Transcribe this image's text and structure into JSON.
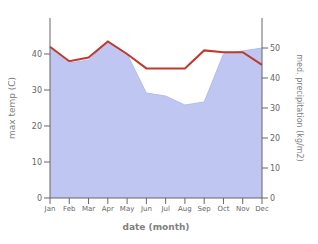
{
  "chart_data": {
    "type": "line",
    "xlabel": "date (month)",
    "ylabel": "max temp (C)",
    "y2label": "med. precipitation (kg/m2)",
    "categories": [
      "Jan",
      "Feb",
      "Mar",
      "Apr",
      "May",
      "Jun",
      "Jul",
      "Aug",
      "Sep",
      "Oct",
      "Nov",
      "Dec"
    ],
    "series": [
      {
        "type": "area",
        "axis": "y2",
        "color": "#b3bcee",
        "values": [
          50,
          45,
          46,
          52,
          48,
          35,
          34,
          31,
          32,
          48,
          49,
          50
        ]
      },
      {
        "type": "line",
        "color": "#c0392b",
        "values": [
          42,
          38,
          39,
          43.5,
          40,
          36,
          36,
          36,
          41,
          40.5,
          40.5,
          37
        ]
      }
    ],
    "ylim": [
      0,
      50
    ],
    "yticks": [
      0,
      10,
      20,
      30,
      40
    ],
    "y2lim": [
      0,
      60
    ],
    "y2ticks": [
      0,
      10,
      20,
      30,
      40,
      50
    ]
  }
}
